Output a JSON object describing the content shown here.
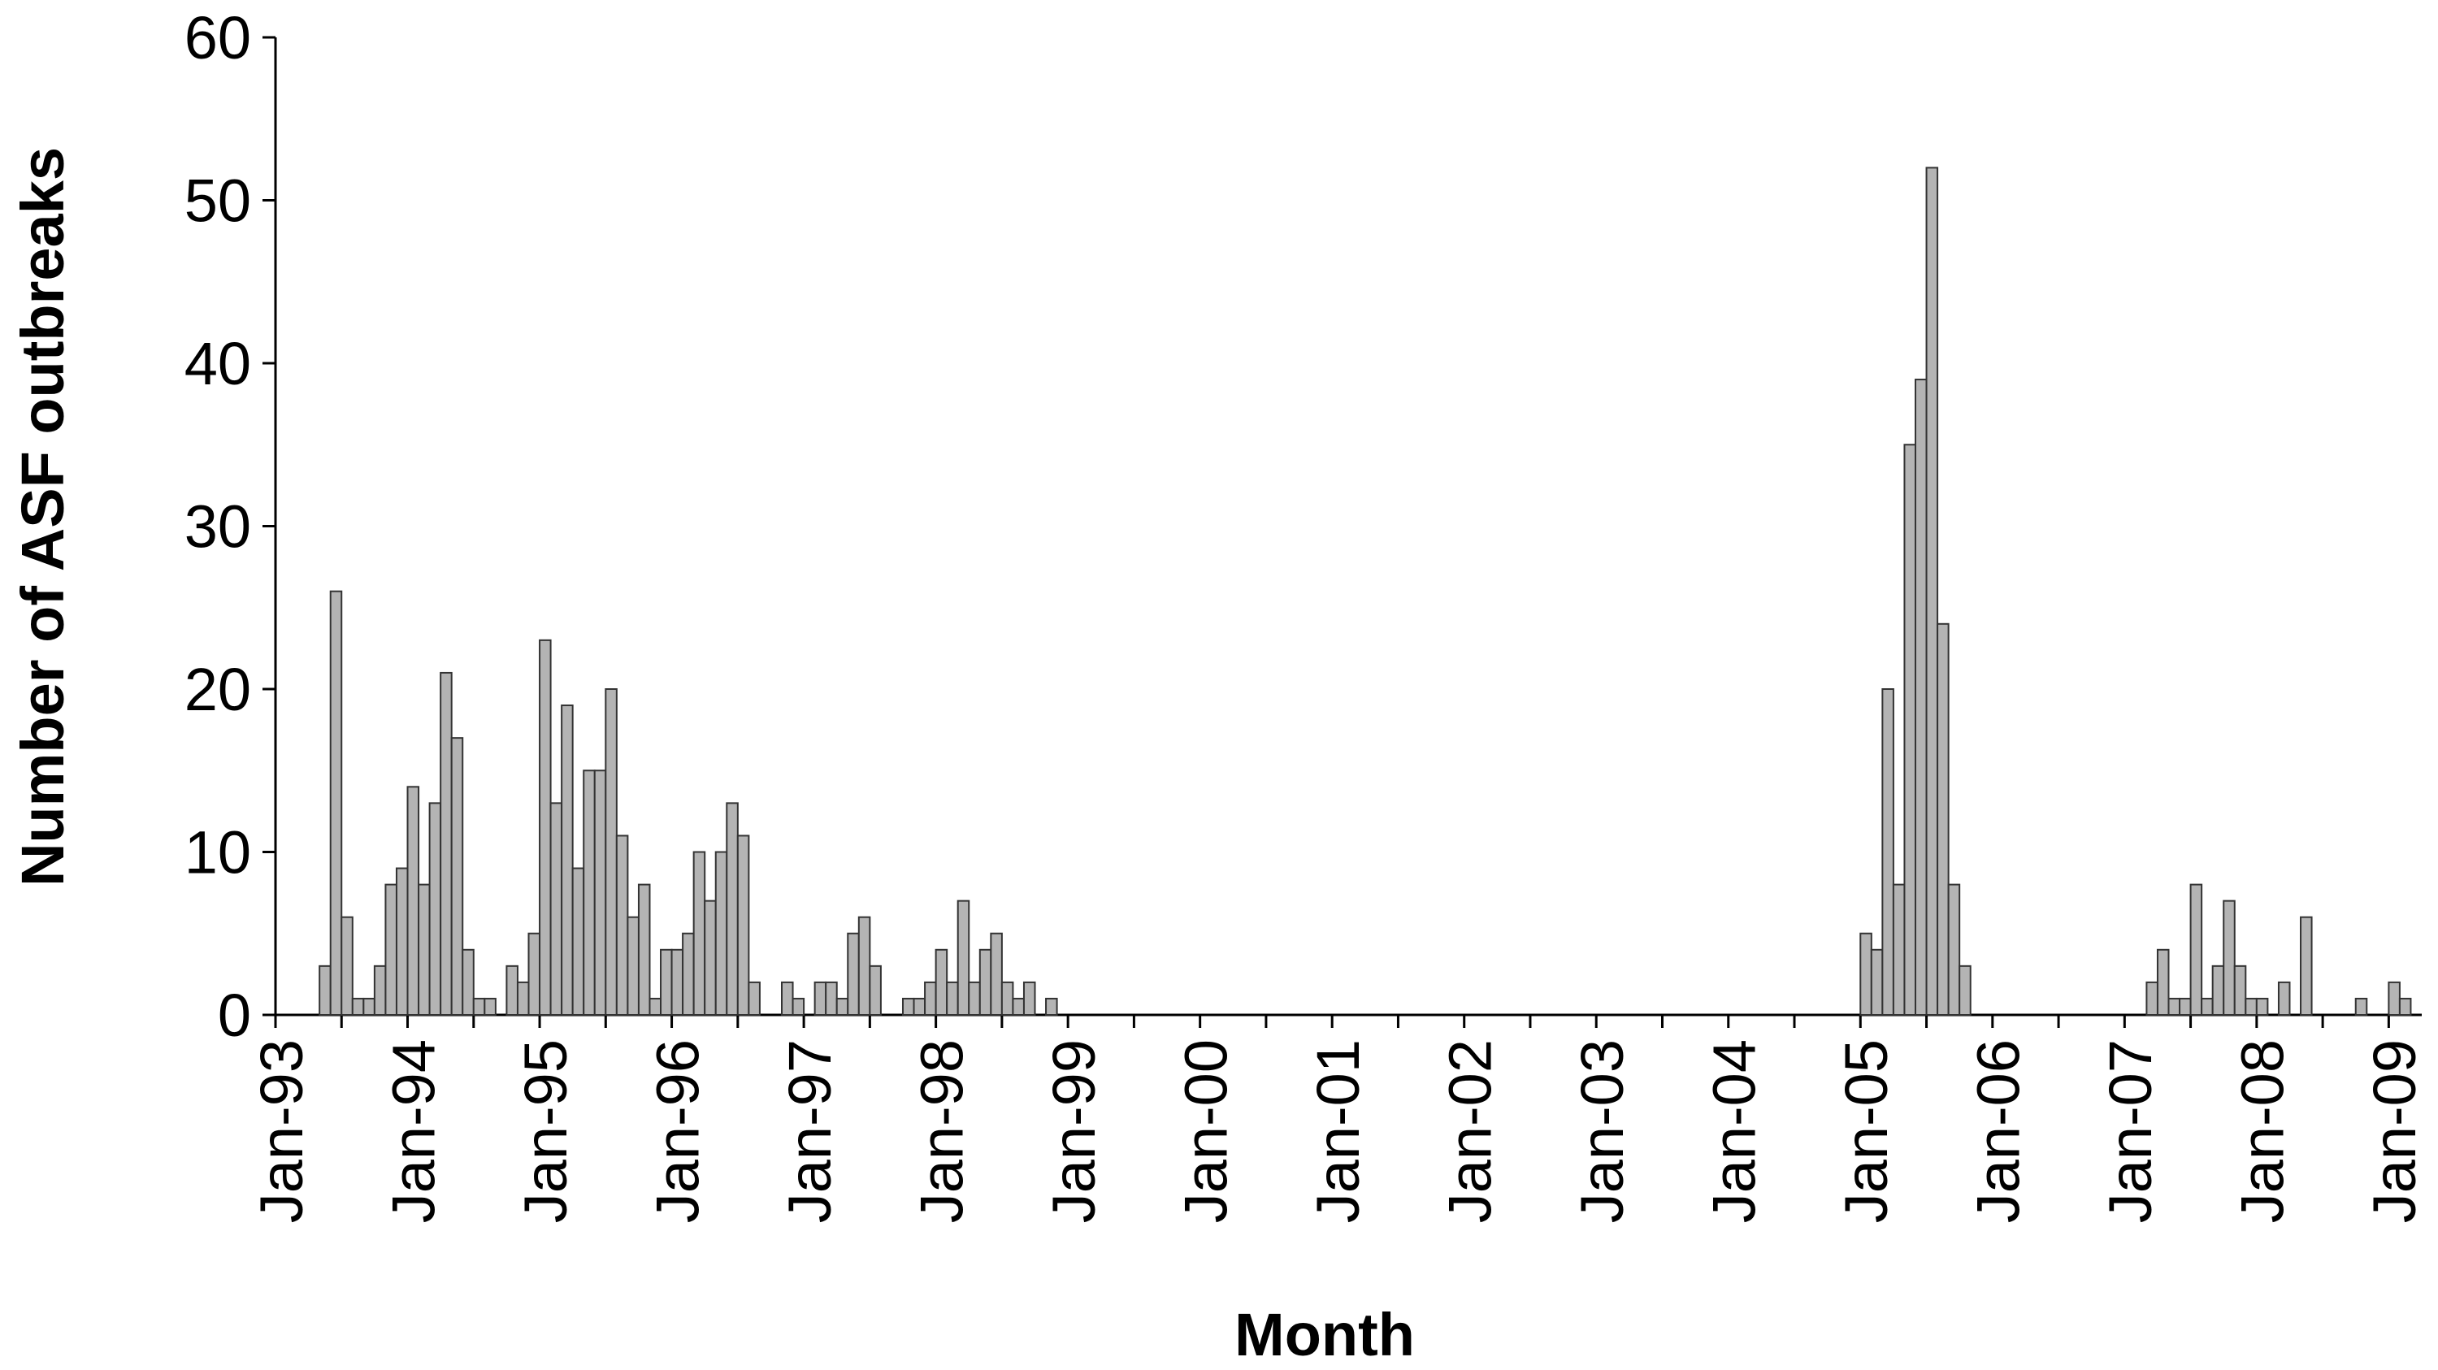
{
  "chart_data": {
    "type": "bar",
    "x_label": "Month",
    "y_label": "Number of ASF outbreaks",
    "color": "#b4b4b4",
    "edge_color": "#333333",
    "grid": false,
    "ylim": [
      0,
      60
    ],
    "yticks": [
      0,
      10,
      20,
      30,
      40,
      50,
      60
    ],
    "categories": [
      "Jan-93",
      null,
      null,
      null,
      null,
      null,
      null,
      null,
      null,
      null,
      null,
      null,
      "Jan-94",
      null,
      null,
      null,
      null,
      null,
      null,
      null,
      null,
      null,
      null,
      null,
      "Jan-95",
      null,
      null,
      null,
      null,
      null,
      null,
      null,
      null,
      null,
      null,
      null,
      "Jan-96",
      null,
      null,
      null,
      null,
      null,
      null,
      null,
      null,
      null,
      null,
      null,
      "Jan-97",
      null,
      null,
      null,
      null,
      null,
      null,
      null,
      null,
      null,
      null,
      null,
      "Jan-98",
      null,
      null,
      null,
      null,
      null,
      null,
      null,
      null,
      null,
      null,
      null,
      "Jan-99",
      null,
      null,
      null,
      null,
      null,
      null,
      null,
      null,
      null,
      null,
      null,
      "Jan-00",
      null,
      null,
      null,
      null,
      null,
      null,
      null,
      null,
      null,
      null,
      null,
      "Jan-01",
      null,
      null,
      null,
      null,
      null,
      null,
      null,
      null,
      null,
      null,
      null,
      "Jan-02",
      null,
      null,
      null,
      null,
      null,
      null,
      null,
      null,
      null,
      null,
      null,
      "Jan-03",
      null,
      null,
      null,
      null,
      null,
      null,
      null,
      null,
      null,
      null,
      null,
      "Jan-04",
      null,
      null,
      null,
      null,
      null,
      null,
      null,
      null,
      null,
      null,
      null,
      "Jan-05",
      null,
      null,
      null,
      null,
      null,
      null,
      null,
      null,
      null,
      null,
      null,
      "Jan-06",
      null,
      null,
      null,
      null,
      null,
      null,
      null,
      null,
      null,
      null,
      null,
      "Jan-07",
      null,
      null,
      null,
      null,
      null,
      null,
      null,
      null,
      null,
      null,
      null,
      "Jan-08",
      null,
      null,
      null,
      null,
      null,
      null,
      null,
      null,
      null,
      null,
      null,
      "Jan-09",
      null,
      null
    ],
    "values": [
      0,
      0,
      0,
      0,
      3,
      26,
      6,
      1,
      1,
      3,
      8,
      9,
      14,
      8,
      13,
      21,
      17,
      4,
      1,
      1,
      0,
      3,
      2,
      5,
      23,
      13,
      19,
      9,
      15,
      15,
      20,
      11,
      6,
      8,
      1,
      4,
      4,
      5,
      10,
      7,
      10,
      13,
      11,
      2,
      0,
      0,
      2,
      1,
      0,
      2,
      2,
      1,
      5,
      6,
      3,
      0,
      0,
      1,
      1,
      2,
      4,
      2,
      7,
      2,
      4,
      5,
      2,
      1,
      2,
      0,
      1,
      0,
      0,
      0,
      0,
      0,
      0,
      0,
      0,
      0,
      0,
      0,
      0,
      0,
      0,
      0,
      0,
      0,
      0,
      0,
      0,
      0,
      0,
      0,
      0,
      0,
      0,
      0,
      0,
      0,
      0,
      0,
      0,
      0,
      0,
      0,
      0,
      0,
      0,
      0,
      0,
      0,
      0,
      0,
      0,
      0,
      0,
      0,
      0,
      0,
      0,
      0,
      0,
      0,
      0,
      0,
      0,
      0,
      0,
      0,
      0,
      0,
      0,
      0,
      0,
      0,
      0,
      0,
      0,
      0,
      0,
      0,
      0,
      0,
      5,
      4,
      20,
      8,
      35,
      39,
      52,
      24,
      8,
      3,
      0,
      0,
      0,
      0,
      0,
      0,
      0,
      0,
      0,
      0,
      0,
      0,
      0,
      0,
      0,
      0,
      2,
      4,
      1,
      1,
      8,
      1,
      3,
      7,
      3,
      1,
      1,
      0,
      2,
      0,
      6,
      0,
      0,
      0,
      0,
      1,
      0,
      0,
      2,
      1,
      0
    ]
  }
}
